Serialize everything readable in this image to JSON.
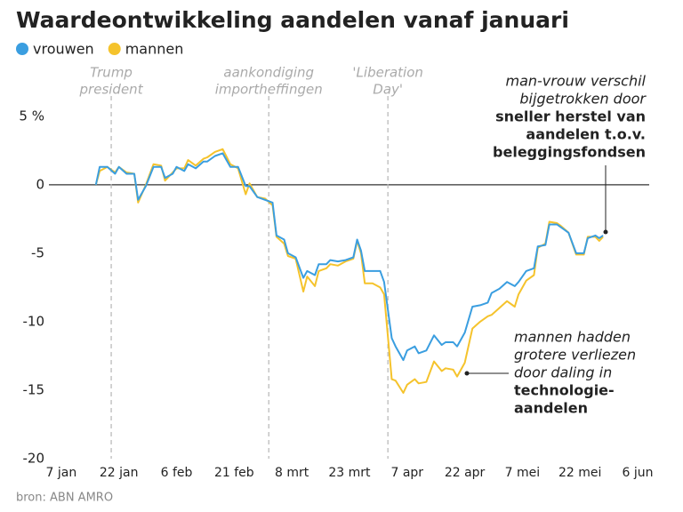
{
  "chart_data": {
    "type": "line",
    "title": "Waardeontwikkeling aandelen vanaf januari",
    "source": "bron: ABN AMRO",
    "x": [
      16,
      17,
      19,
      21,
      22,
      24,
      26,
      27,
      29,
      31,
      33,
      34,
      36,
      37,
      39,
      40,
      42,
      44,
      45,
      47,
      49,
      51,
      53,
      55,
      56,
      58,
      60,
      62,
      63,
      65,
      66,
      68,
      70,
      71,
      73,
      74,
      76,
      77,
      79,
      81,
      83,
      84,
      85,
      86,
      88,
      90,
      91,
      93,
      94,
      96,
      97,
      99,
      100,
      102,
      104,
      106,
      107,
      109,
      110,
      112,
      114,
      116,
      118,
      119,
      121,
      123,
      125,
      126,
      128,
      130,
      131,
      133,
      134,
      136,
      137,
      139,
      141,
      143,
      144,
      146,
      147,
      148
    ],
    "series": [
      {
        "name": "vrouwen",
        "color": "#3a9ee0",
        "values": [
          0,
          1.3,
          1.3,
          0.8,
          1.3,
          0.8,
          0.8,
          -1.1,
          -0.1,
          1.3,
          1.3,
          0.5,
          0.8,
          1.3,
          1.0,
          1.5,
          1.2,
          1.7,
          1.7,
          2.1,
          2.3,
          1.3,
          1.3,
          -0.1,
          -0.1,
          -0.9,
          -1.1,
          -1.3,
          -3.7,
          -4.0,
          -5.0,
          -5.3,
          -6.8,
          -6.3,
          -6.6,
          -5.8,
          -5.8,
          -5.5,
          -5.6,
          -5.5,
          -5.3,
          -4.0,
          -4.8,
          -6.3,
          -6.3,
          -6.3,
          -7.1,
          -11.2,
          -11.8,
          -12.8,
          -12.1,
          -11.8,
          -12.3,
          -12.1,
          -11.0,
          -11.7,
          -11.5,
          -11.5,
          -11.8,
          -10.8,
          -8.9,
          -8.8,
          -8.6,
          -7.9,
          -7.6,
          -7.1,
          -7.4,
          -7.1,
          -6.3,
          -6.1,
          -4.5,
          -4.4,
          -2.9,
          -2.9,
          -3.1,
          -3.5,
          -5.0,
          -5.0,
          -3.9,
          -3.7,
          -3.9,
          -3.7
        ]
      },
      {
        "name": "mannen",
        "color": "#f5c32c",
        "values": [
          0,
          1.0,
          1.3,
          0.9,
          1.3,
          0.9,
          0.8,
          -1.3,
          0.0,
          1.5,
          1.4,
          0.3,
          0.9,
          1.2,
          1.2,
          1.8,
          1.4,
          1.9,
          2.0,
          2.4,
          2.6,
          1.5,
          1.2,
          -0.7,
          0.1,
          -0.9,
          -1.0,
          -1.5,
          -3.8,
          -4.3,
          -5.2,
          -5.4,
          -7.8,
          -6.7,
          -7.4,
          -6.3,
          -6.1,
          -5.8,
          -5.9,
          -5.6,
          -5.4,
          -4.1,
          -5.0,
          -7.2,
          -7.2,
          -7.5,
          -8.0,
          -14.2,
          -14.3,
          -15.2,
          -14.6,
          -14.2,
          -14.5,
          -14.4,
          -12.9,
          -13.6,
          -13.4,
          -13.5,
          -14.0,
          -13.0,
          -10.5,
          -10.0,
          -9.6,
          -9.5,
          -9.0,
          -8.5,
          -8.9,
          -8.0,
          -7.0,
          -6.6,
          -4.6,
          -4.3,
          -2.7,
          -2.8,
          -3.0,
          -3.5,
          -5.1,
          -5.1,
          -3.8,
          -3.8,
          -4.1,
          -3.8
        ]
      }
    ],
    "xlim": [
      -2,
      160
    ],
    "xticks": [
      {
        "value": 7,
        "label": "7 jan"
      },
      {
        "value": 22,
        "label": "22 jan"
      },
      {
        "value": 37,
        "label": "6 feb"
      },
      {
        "value": 52,
        "label": "21 feb"
      },
      {
        "value": 67,
        "label": "8 mrt"
      },
      {
        "value": 82,
        "label": "23 mrt"
      },
      {
        "value": 97,
        "label": "7 apr"
      },
      {
        "value": 112,
        "label": "22 apr"
      },
      {
        "value": 127,
        "label": "7 mei"
      },
      {
        "value": 142,
        "label": "22 mei"
      },
      {
        "value": 157,
        "label": "6 jun"
      }
    ],
    "ylim": [
      -20,
      7
    ],
    "yticks": [
      {
        "value": 5,
        "label": "5 %"
      },
      0,
      -5,
      -10,
      -15,
      -20
    ],
    "zero_line": true,
    "events": [
      {
        "x": 20,
        "lines": [
          "Trump",
          "president"
        ]
      },
      {
        "x": 61,
        "lines": [
          "aankondiging",
          "importheffingen"
        ]
      },
      {
        "x": 92,
        "lines": [
          "'Liberation",
          "Day'"
        ]
      }
    ],
    "annotations": [
      {
        "lines": [
          {
            "text": "man-vrouw verschil",
            "bold": false
          },
          {
            "text": "bijgetrokken door",
            "bold": false
          },
          {
            "text": "sneller herstel van",
            "bold": true
          },
          {
            "text": "aandelen t.o.v.",
            "bold": true
          },
          {
            "text": "beleggingsfondsen",
            "bold": true
          }
        ]
      },
      {
        "lines": [
          {
            "text": "mannen hadden",
            "bold": false
          },
          {
            "text": "grotere verliezen",
            "bold": false
          },
          {
            "text": "door daling in",
            "bold": false
          },
          {
            "text": "technologie-",
            "bold": true
          },
          {
            "text": "aandelen",
            "bold": true
          }
        ]
      }
    ]
  }
}
